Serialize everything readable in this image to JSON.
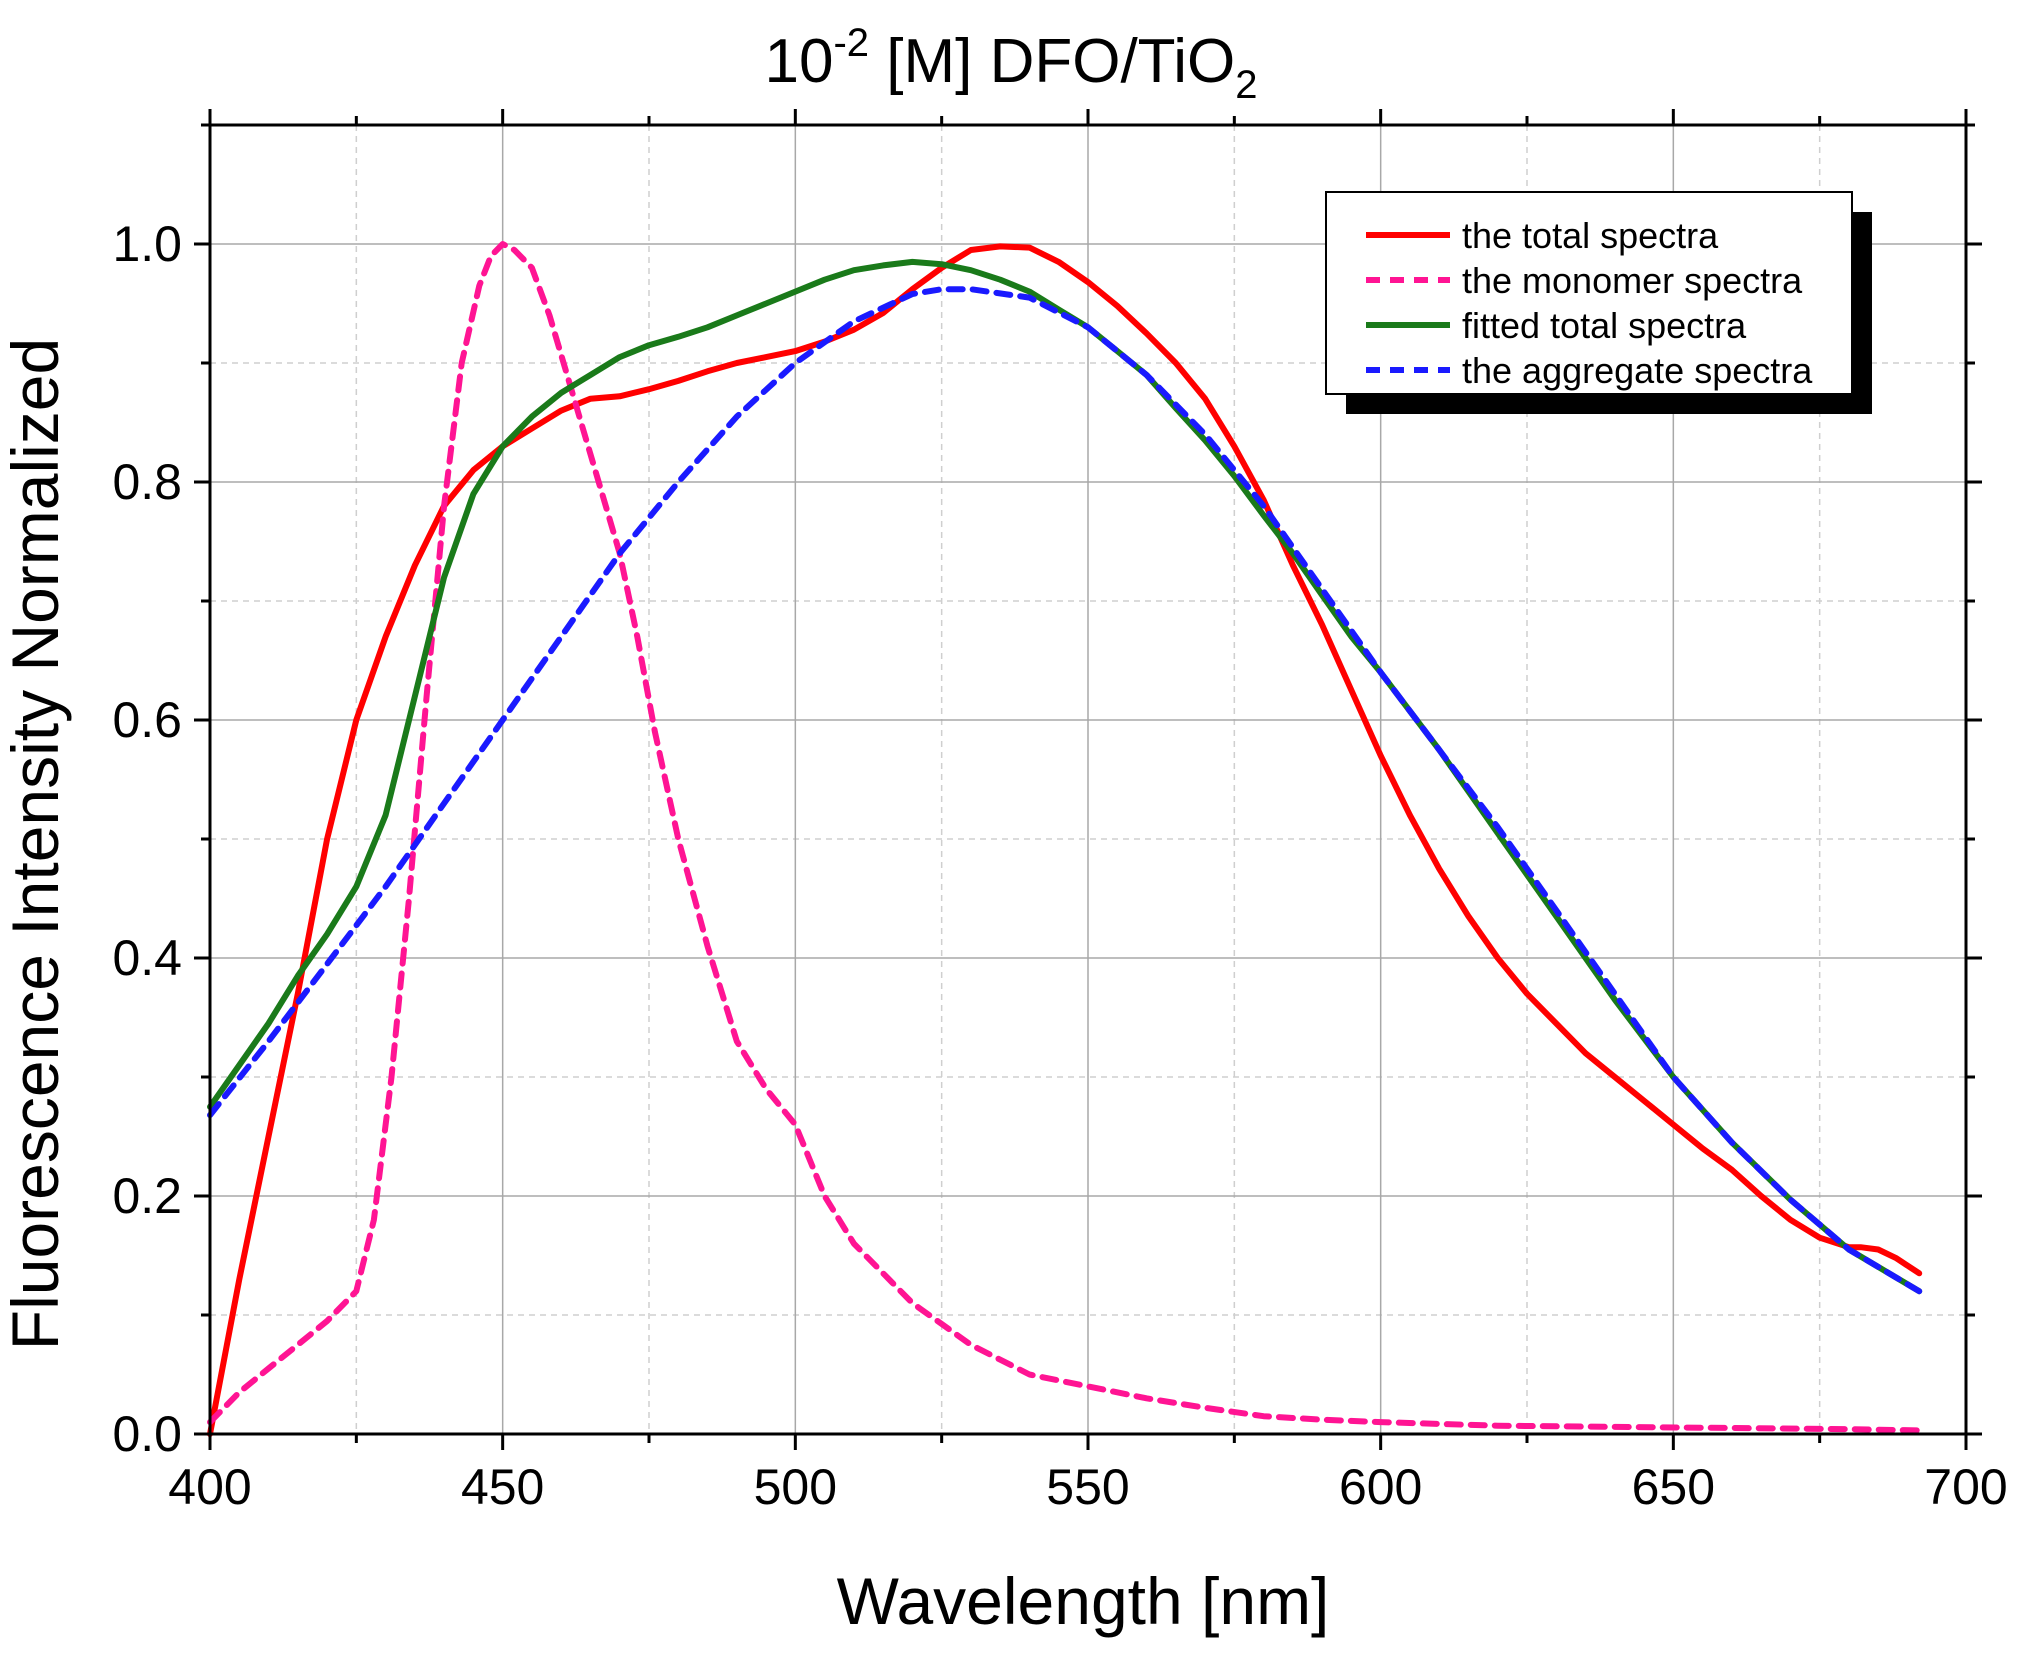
{
  "chart_data": {
    "type": "line",
    "title": {
      "prefix": "10",
      "superscript": "-2",
      "middle": " [M] DFO/TiO",
      "subscript": "2"
    },
    "xlabel": "Wavelength [nm]",
    "ylabel": "Fluorescence Intensity Normalized",
    "xlim": [
      400,
      700
    ],
    "ylim": [
      0,
      1.1
    ],
    "xticks": [
      400,
      450,
      500,
      550,
      600,
      650,
      700
    ],
    "yticks": [
      0.0,
      0.2,
      0.4,
      0.6,
      0.8,
      1.0
    ],
    "xtick_labels": [
      "400",
      "450",
      "500",
      "550",
      "600",
      "650",
      "700"
    ],
    "ytick_labels": [
      "0.0",
      "0.2",
      "0.4",
      "0.6",
      "0.8",
      "1.0"
    ],
    "grid": true,
    "legend_position": "top-right",
    "series": [
      {
        "name": "the total spectra",
        "color": "#ff0000",
        "dash": "solid",
        "x": [
          400,
          405,
          410,
          415,
          420,
          425,
          430,
          435,
          440,
          445,
          450,
          455,
          460,
          465,
          470,
          475,
          480,
          485,
          490,
          495,
          500,
          505,
          510,
          515,
          520,
          525,
          530,
          535,
          540,
          545,
          550,
          555,
          560,
          565,
          570,
          575,
          580,
          585,
          590,
          595,
          600,
          605,
          610,
          615,
          620,
          625,
          630,
          635,
          640,
          645,
          650,
          655,
          660,
          665,
          670,
          675,
          680,
          682,
          685,
          688,
          692
        ],
        "y": [
          0.0,
          0.13,
          0.25,
          0.37,
          0.5,
          0.6,
          0.67,
          0.73,
          0.78,
          0.81,
          0.83,
          0.845,
          0.86,
          0.87,
          0.872,
          0.878,
          0.885,
          0.893,
          0.9,
          0.905,
          0.91,
          0.918,
          0.928,
          0.942,
          0.962,
          0.98,
          0.995,
          0.998,
          0.997,
          0.985,
          0.968,
          0.948,
          0.925,
          0.9,
          0.87,
          0.83,
          0.785,
          0.73,
          0.68,
          0.625,
          0.57,
          0.52,
          0.475,
          0.435,
          0.4,
          0.37,
          0.345,
          0.32,
          0.3,
          0.28,
          0.26,
          0.24,
          0.222,
          0.2,
          0.18,
          0.165,
          0.157,
          0.157,
          0.155,
          0.148,
          0.135
        ]
      },
      {
        "name": "the monomer spectra",
        "color": "#ff1493",
        "dash": "dashed",
        "x": [
          400,
          405,
          410,
          415,
          420,
          425,
          428,
          431,
          434,
          437,
          440,
          443,
          446,
          448,
          450,
          452,
          455,
          458,
          461,
          464,
          467,
          470,
          473,
          476,
          480,
          485,
          490,
          495,
          500,
          505,
          510,
          520,
          530,
          540,
          550,
          560,
          570,
          580,
          590,
          600,
          620,
          640,
          660,
          680,
          692
        ],
        "y": [
          0.01,
          0.035,
          0.055,
          0.075,
          0.095,
          0.12,
          0.18,
          0.3,
          0.45,
          0.62,
          0.78,
          0.9,
          0.965,
          0.99,
          1.0,
          0.995,
          0.98,
          0.94,
          0.89,
          0.84,
          0.79,
          0.74,
          0.67,
          0.59,
          0.5,
          0.41,
          0.33,
          0.29,
          0.26,
          0.2,
          0.16,
          0.11,
          0.075,
          0.05,
          0.04,
          0.03,
          0.022,
          0.015,
          0.012,
          0.01,
          0.007,
          0.006,
          0.005,
          0.004,
          0.003
        ]
      },
      {
        "name": "fitted total spectra",
        "color": "#1a7a1a",
        "dash": "solid",
        "x": [
          400,
          405,
          410,
          415,
          420,
          425,
          430,
          435,
          440,
          445,
          450,
          455,
          460,
          465,
          470,
          475,
          480,
          485,
          490,
          495,
          500,
          505,
          510,
          515,
          520,
          525,
          530,
          535,
          540,
          545,
          550,
          555,
          560,
          565,
          570,
          575,
          580,
          585,
          590,
          595,
          600,
          610,
          620,
          630,
          640,
          650,
          660,
          670,
          680,
          692
        ],
        "y": [
          0.275,
          0.31,
          0.345,
          0.385,
          0.42,
          0.46,
          0.52,
          0.62,
          0.72,
          0.79,
          0.83,
          0.855,
          0.875,
          0.89,
          0.905,
          0.915,
          0.922,
          0.93,
          0.94,
          0.95,
          0.96,
          0.97,
          0.978,
          0.982,
          0.985,
          0.983,
          0.978,
          0.97,
          0.96,
          0.945,
          0.93,
          0.91,
          0.89,
          0.862,
          0.835,
          0.805,
          0.772,
          0.74,
          0.705,
          0.67,
          0.64,
          0.575,
          0.505,
          0.435,
          0.365,
          0.3,
          0.245,
          0.197,
          0.155,
          0.12
        ]
      },
      {
        "name": "the aggregate spectra",
        "color": "#1a1aff",
        "dash": "dashed",
        "x": [
          400,
          410,
          420,
          430,
          440,
          450,
          460,
          470,
          480,
          490,
          500,
          510,
          520,
          525,
          530,
          540,
          550,
          560,
          570,
          580,
          590,
          600,
          610,
          620,
          630,
          640,
          650,
          660,
          670,
          680,
          692
        ],
        "y": [
          0.268,
          0.33,
          0.395,
          0.46,
          0.53,
          0.6,
          0.67,
          0.74,
          0.8,
          0.855,
          0.9,
          0.935,
          0.958,
          0.962,
          0.962,
          0.955,
          0.93,
          0.89,
          0.84,
          0.78,
          0.71,
          0.64,
          0.575,
          0.51,
          0.44,
          0.37,
          0.3,
          0.245,
          0.197,
          0.155,
          0.12
        ]
      }
    ]
  }
}
